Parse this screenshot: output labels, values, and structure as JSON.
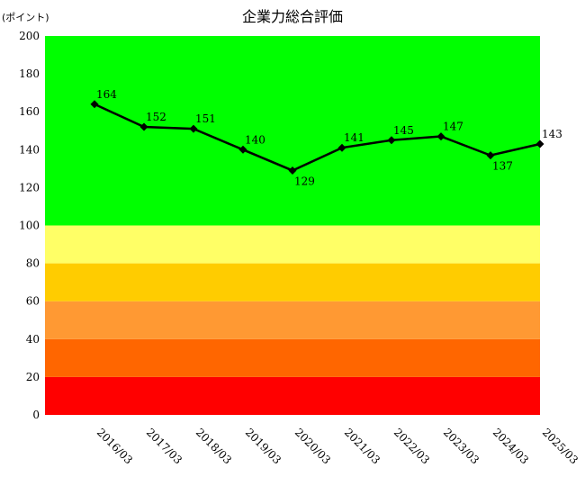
{
  "chart_data": {
    "type": "line",
    "title": "企業力総合評価",
    "ylabel": "(ポイント)",
    "xlabel": "",
    "categories": [
      "2016/03",
      "2017/03",
      "2018/03",
      "2019/03",
      "2020/03",
      "2021/03",
      "2022/03",
      "2023/03",
      "2024/03",
      "2025/03"
    ],
    "series": [
      {
        "values": [
          164,
          152,
          151,
          140,
          129,
          141,
          145,
          147,
          137,
          143
        ],
        "color": "#000000"
      }
    ],
    "data_labels": [
      "164",
      "152",
      "151",
      "140",
      "129",
      "141",
      "145",
      "147",
      "137",
      "143"
    ],
    "ylim": [
      0,
      200
    ],
    "yticks": [
      0,
      20,
      40,
      60,
      80,
      100,
      120,
      140,
      160,
      180,
      200
    ],
    "ytick_labels": [
      "0",
      "20",
      "40",
      "60",
      "80",
      "100",
      "120",
      "140",
      "160",
      "180",
      "200"
    ],
    "grid": false,
    "legend": "none",
    "background_bands": [
      {
        "from": 0,
        "to": 20,
        "color": "#ff0000"
      },
      {
        "from": 20,
        "to": 40,
        "color": "#ff6600"
      },
      {
        "from": 40,
        "to": 60,
        "color": "#ff9933"
      },
      {
        "from": 60,
        "to": 80,
        "color": "#ffcc00"
      },
      {
        "from": 80,
        "to": 100,
        "color": "#ffff66"
      },
      {
        "from": 100,
        "to": 200,
        "color": "#00ff00"
      }
    ]
  }
}
